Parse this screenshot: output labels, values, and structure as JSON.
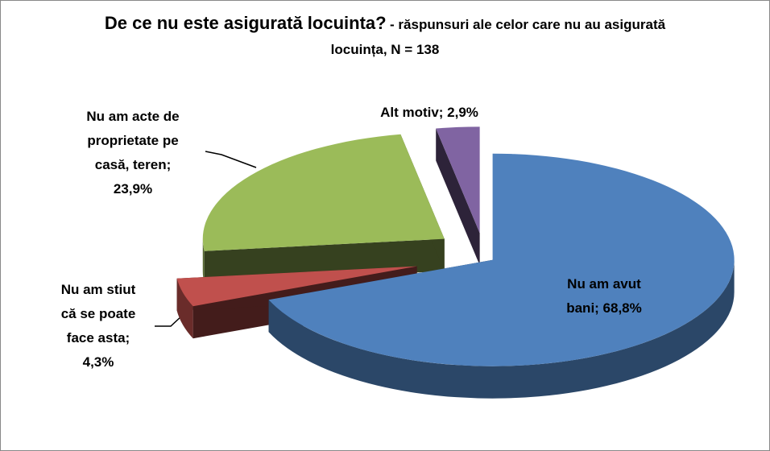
{
  "chart_data": {
    "type": "pie",
    "title": "De ce nu este asigurată locuinta?",
    "subtitle": "- răspunsuri ale celor care nu au asigurată locuința, N = 138",
    "values": [
      68.8,
      4.3,
      23.9,
      2.9
    ],
    "value_labels": [
      "Nu am avut bani; 68,8%",
      "Nu am stiut că se poate face asta; 4,3%",
      "Nu am acte de proprietate pe casă, teren; 23,9%",
      "Alt motiv; 2,9%"
    ],
    "colors": [
      "#4f81bd",
      "#c0504d",
      "#9bbb59",
      "#8064a2"
    ]
  }
}
